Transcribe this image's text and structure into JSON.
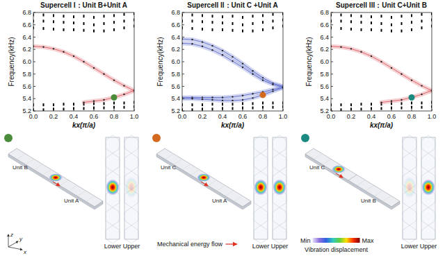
{
  "chart_data": [
    {
      "type": "line",
      "title": "Supercell I：Unit B+Unit A",
      "x_label": "kx(π/a)",
      "y_label": "Frequency(kHz)",
      "xlim": [
        0,
        1
      ],
      "ylim": [
        5.2,
        6.8
      ],
      "xticks": [
        {
          "value": 0,
          "label": "0.0"
        },
        0.2,
        0.4,
        0.6,
        0.8,
        {
          "value": 1,
          "label": "1.0"
        }
      ],
      "yticks": [
        5.2,
        5.4,
        5.6,
        5.8,
        {
          "value": 6,
          "label": "6.0"
        },
        6.2,
        6.4,
        6.6,
        6.8
      ],
      "series": [
        {
          "type": "scatter",
          "marker": "square",
          "color": "#000000",
          "x": [
            0,
            0.1,
            0.2,
            0.3,
            0.4,
            0.5,
            0.6,
            0.7,
            0.8,
            0.9,
            1
          ],
          "values": [
            5.22,
            5.22,
            5.23,
            5.23,
            5.24,
            5.24,
            5.25,
            5.25,
            5.26,
            5.26,
            5.27
          ]
        },
        {
          "type": "scatter",
          "marker": "square",
          "color": "#000000",
          "x": [
            0,
            0.1,
            0.2,
            0.3,
            0.4,
            0.5,
            0.6,
            0.7,
            0.8,
            0.9,
            1
          ],
          "values": [
            5.3,
            5.3,
            5.3,
            5.31,
            5.31,
            5.31,
            5.32,
            5.32,
            5.33,
            5.33,
            5.34
          ]
        },
        {
          "type": "scatter",
          "marker": "square",
          "color": "#000000",
          "x": [
            0,
            0.1,
            0.2,
            0.3,
            0.4,
            0.5,
            0.6,
            0.7,
            0.8,
            0.9,
            1
          ],
          "values": [
            6.55,
            6.54,
            6.53,
            6.52,
            6.52,
            6.51,
            6.5,
            6.5,
            6.52,
            6.55,
            6.58
          ]
        },
        {
          "type": "scatter",
          "marker": "square",
          "color": "#000000",
          "x": [
            0,
            0.1,
            0.2,
            0.3,
            0.4,
            0.5,
            0.6,
            0.7,
            0.8,
            0.9,
            1
          ],
          "values": [
            6.66,
            6.66,
            6.65,
            6.64,
            6.63,
            6.62,
            6.6,
            6.62,
            6.64,
            6.66,
            6.68
          ]
        },
        {
          "type": "scatter",
          "marker": "square",
          "color": "#000000",
          "x": [
            0,
            0.1,
            0.2,
            0.3,
            0.4,
            0.5,
            0.6,
            0.7,
            0.8,
            0.9,
            1
          ],
          "values": [
            6.76,
            6.76,
            6.75,
            6.74,
            6.73,
            6.74,
            6.72,
            6.74,
            6.75,
            6.77,
            6.78
          ]
        },
        {
          "type": "line",
          "marker": "dot",
          "color": "#e06a70",
          "x": [
            0,
            0.1,
            0.2,
            0.3,
            0.4,
            0.5,
            0.6,
            0.7,
            0.8,
            0.9,
            1
          ],
          "values": [
            6.25,
            6.24,
            6.21,
            6.16,
            6.09,
            6.0,
            5.9,
            5.8,
            5.7,
            5.61,
            5.53
          ]
        },
        {
          "type": "line",
          "marker": "dot",
          "color": "#e06a70",
          "x": [
            0.5,
            0.6,
            0.7,
            0.8,
            0.9,
            1
          ],
          "values": [
            5.34,
            5.36,
            5.38,
            5.42,
            5.47,
            5.53
          ]
        },
        {
          "type": "scatter",
          "marker": "circle",
          "color": "#4a8c3a",
          "x": [
            0.8
          ],
          "values": [
            5.42
          ]
        }
      ]
    },
    {
      "type": "line",
      "title": "Supercell II：Unit C +Unit A",
      "x_label": "kx(π/a)",
      "y_label": "Frequency(kHz)",
      "xlim": [
        0,
        1
      ],
      "ylim": [
        5.2,
        6.8
      ],
      "xticks": [
        {
          "value": 0,
          "label": "0.0"
        },
        0.2,
        0.4,
        0.6,
        0.8,
        {
          "value": 1,
          "label": "1.0"
        }
      ],
      "yticks": [
        5.2,
        5.4,
        5.6,
        5.8,
        {
          "value": 6,
          "label": "6.0"
        },
        6.2,
        6.4,
        6.6,
        6.8
      ],
      "series": [
        {
          "type": "scatter",
          "marker": "square",
          "color": "#000000",
          "x": [
            0,
            0.1,
            0.2,
            0.3,
            0.4,
            0.5,
            0.6,
            0.7,
            0.8,
            0.9,
            1
          ],
          "values": [
            5.22,
            5.22,
            5.23,
            5.23,
            5.24,
            5.24,
            5.25,
            5.25,
            5.26,
            5.26,
            5.27
          ]
        },
        {
          "type": "scatter",
          "marker": "square",
          "color": "#000000",
          "x": [
            0,
            0.1,
            0.2,
            0.3,
            0.4,
            0.5,
            0.6,
            0.7,
            0.8,
            0.9,
            1
          ],
          "values": [
            5.3,
            5.3,
            5.3,
            5.31,
            5.31,
            5.31,
            5.32,
            5.32,
            5.33,
            5.33,
            5.33
          ]
        },
        {
          "type": "scatter",
          "marker": "square",
          "color": "#000000",
          "x": [
            0,
            0.1,
            0.2,
            0.3,
            0.4,
            0.5,
            0.6,
            0.7,
            0.8,
            0.9,
            1
          ],
          "values": [
            6.55,
            6.54,
            6.53,
            6.52,
            6.52,
            6.51,
            6.5,
            6.5,
            6.52,
            6.55,
            6.58
          ]
        },
        {
          "type": "scatter",
          "marker": "square",
          "color": "#000000",
          "x": [
            0,
            0.1,
            0.2,
            0.3,
            0.4,
            0.5,
            0.6,
            0.7,
            0.8,
            0.9,
            1
          ],
          "values": [
            6.66,
            6.66,
            6.65,
            6.64,
            6.63,
            6.62,
            6.6,
            6.62,
            6.64,
            6.66,
            6.68
          ]
        },
        {
          "type": "scatter",
          "marker": "square",
          "color": "#000000",
          "x": [
            0,
            0.1,
            0.2,
            0.3,
            0.4,
            0.5,
            0.6,
            0.7,
            0.8,
            0.9,
            1
          ],
          "values": [
            6.76,
            6.76,
            6.75,
            6.74,
            6.73,
            6.74,
            6.72,
            6.74,
            6.75,
            6.77,
            6.78
          ]
        },
        {
          "type": "line",
          "marker": "dot",
          "color": "#6a78d0",
          "x": [
            0,
            0.1,
            0.2,
            0.3,
            0.4,
            0.5,
            0.6,
            0.7,
            0.8,
            0.9,
            1
          ],
          "values": [
            6.37,
            6.36,
            6.32,
            6.26,
            6.18,
            6.08,
            5.97,
            5.85,
            5.74,
            5.65,
            5.6
          ]
        },
        {
          "type": "line",
          "marker": "dot",
          "color": "#6a78d0",
          "x": [
            0,
            0.1,
            0.2,
            0.3,
            0.4,
            0.5,
            0.6,
            0.7,
            0.8,
            0.9,
            1
          ],
          "values": [
            6.3,
            6.29,
            6.25,
            6.19,
            6.11,
            6.01,
            5.91,
            5.8,
            5.7,
            5.63,
            5.59
          ]
        },
        {
          "type": "line",
          "marker": "dot",
          "color": "#6a78d0",
          "x": [
            0,
            0.1,
            0.2,
            0.3,
            0.4,
            0.5,
            0.6,
            0.7,
            0.8,
            0.9,
            1
          ],
          "values": [
            5.42,
            5.42,
            5.42,
            5.42,
            5.42,
            5.43,
            5.45,
            5.48,
            5.51,
            5.55,
            5.58
          ]
        },
        {
          "type": "line",
          "marker": "dot",
          "color": "#6a78d0",
          "x": [
            0,
            0.1,
            0.2,
            0.3,
            0.4,
            0.5,
            0.6,
            0.7,
            0.8,
            0.9,
            1
          ],
          "values": [
            5.4,
            5.4,
            5.39,
            5.38,
            5.37,
            5.37,
            5.38,
            5.41,
            5.46,
            5.52,
            5.58
          ]
        },
        {
          "type": "scatter",
          "marker": "circle",
          "color": "#d2691e",
          "x": [
            0.8
          ],
          "values": [
            5.46
          ]
        }
      ]
    },
    {
      "type": "line",
      "title": "Supercell III：Unit C+Unit B",
      "x_label": "kx(π/a)",
      "y_label": "Frequency(kHz)",
      "xlim": [
        0,
        1
      ],
      "ylim": [
        5.2,
        6.8
      ],
      "xticks": [
        {
          "value": 0,
          "label": "0.0"
        },
        0.2,
        0.4,
        0.6,
        0.8,
        {
          "value": 1,
          "label": "1.0"
        }
      ],
      "yticks": [
        5.2,
        5.4,
        5.6,
        5.8,
        {
          "value": 6,
          "label": "6.0"
        },
        6.2,
        6.4,
        6.6,
        6.8
      ],
      "series": [
        {
          "type": "scatter",
          "marker": "square",
          "color": "#000000",
          "x": [
            0,
            0.1,
            0.2,
            0.3,
            0.4,
            0.5,
            0.6,
            0.7,
            0.8,
            0.9,
            1
          ],
          "values": [
            5.22,
            5.22,
            5.23,
            5.23,
            5.24,
            5.24,
            5.25,
            5.25,
            5.26,
            5.26,
            5.27
          ]
        },
        {
          "type": "scatter",
          "marker": "square",
          "color": "#000000",
          "x": [
            0,
            0.1,
            0.2,
            0.3,
            0.4,
            0.5,
            0.6,
            0.7,
            0.8,
            0.9,
            1
          ],
          "values": [
            5.3,
            5.3,
            5.3,
            5.31,
            5.31,
            5.31,
            5.32,
            5.32,
            5.33,
            5.33,
            5.34
          ]
        },
        {
          "type": "scatter",
          "marker": "square",
          "color": "#000000",
          "x": [
            0,
            0.1,
            0.2,
            0.3,
            0.4,
            0.5,
            0.6,
            0.7,
            0.8,
            0.9,
            1
          ],
          "values": [
            6.55,
            6.54,
            6.53,
            6.52,
            6.52,
            6.51,
            6.5,
            6.5,
            6.52,
            6.55,
            6.58
          ]
        },
        {
          "type": "scatter",
          "marker": "square",
          "color": "#000000",
          "x": [
            0,
            0.1,
            0.2,
            0.3,
            0.4,
            0.5,
            0.6,
            0.7,
            0.8,
            0.9,
            1
          ],
          "values": [
            6.66,
            6.66,
            6.65,
            6.64,
            6.63,
            6.62,
            6.6,
            6.62,
            6.64,
            6.66,
            6.68
          ]
        },
        {
          "type": "scatter",
          "marker": "square",
          "color": "#000000",
          "x": [
            0,
            0.1,
            0.2,
            0.3,
            0.4,
            0.5,
            0.6,
            0.7,
            0.8,
            0.9,
            1
          ],
          "values": [
            6.76,
            6.76,
            6.75,
            6.74,
            6.73,
            6.74,
            6.72,
            6.74,
            6.75,
            6.77,
            6.78
          ]
        },
        {
          "type": "line",
          "marker": "dot",
          "color": "#e06a70",
          "x": [
            0,
            0.1,
            0.2,
            0.3,
            0.4,
            0.5,
            0.6,
            0.7,
            0.8,
            0.9,
            1
          ],
          "values": [
            6.25,
            6.24,
            6.21,
            6.16,
            6.09,
            6.0,
            5.9,
            5.8,
            5.7,
            5.61,
            5.53
          ]
        },
        {
          "type": "line",
          "marker": "dot",
          "color": "#e06a70",
          "x": [
            0.5,
            0.6,
            0.7,
            0.8,
            0.9,
            1
          ],
          "values": [
            5.34,
            5.36,
            5.38,
            5.42,
            5.47,
            5.53
          ]
        },
        {
          "type": "scatter",
          "marker": "circle",
          "color": "#1a8a80",
          "x": [
            0.8
          ],
          "values": [
            5.42
          ]
        }
      ]
    }
  ],
  "illustrations": [
    {
      "color": "#4a8c3a",
      "labels": [
        "Unit B",
        "Unit A"
      ],
      "strips": [
        "Lower",
        "Upper"
      ]
    },
    {
      "color": "#d2691e",
      "labels": [
        "Unit C",
        "Unit A"
      ],
      "strips": [
        "Lower",
        "Upper"
      ]
    },
    {
      "color": "#1a8a80",
      "labels": [
        "Unit C",
        "Unit B"
      ],
      "strips": [
        "Lower",
        "Upper"
      ]
    }
  ],
  "legend_items": {
    "energy_flow": "Mechanical energy flow",
    "colorbar_min": "Min",
    "colorbar_max": "Max",
    "colorbar_label": "Vibration displacement"
  },
  "axes_triad": [
    "z",
    "y",
    "x"
  ]
}
